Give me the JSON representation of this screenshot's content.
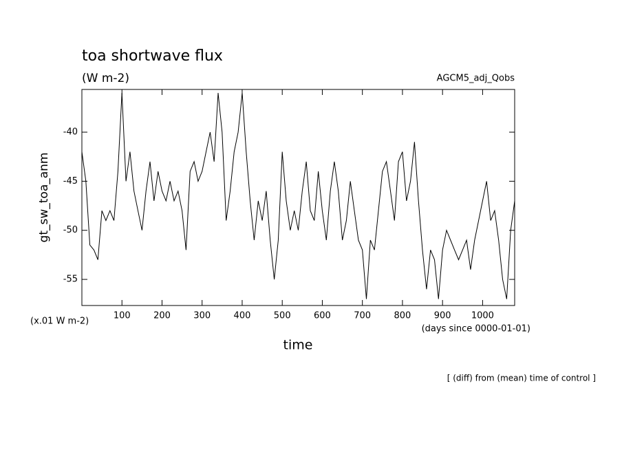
{
  "chart_data": {
    "type": "line",
    "title": "toa shortwave flux",
    "subtitle": "(W m-2)",
    "annotation": "AGCM5_adj_Qobs",
    "y_label": "gt_sw_toa_anm",
    "x_label": "time",
    "y_unit_note": "(x.01 W m-2)",
    "x_unit_note": "(days since 0000-01-01)",
    "footnote": "[ (diff) from (mean) time of control ]",
    "x": [
      0,
      10,
      20,
      30,
      40,
      50,
      60,
      70,
      80,
      90,
      100,
      110,
      120,
      130,
      140,
      150,
      160,
      170,
      180,
      190,
      200,
      210,
      220,
      230,
      240,
      250,
      260,
      270,
      280,
      290,
      300,
      310,
      320,
      330,
      340,
      350,
      360,
      370,
      380,
      390,
      400,
      410,
      420,
      430,
      440,
      450,
      460,
      470,
      480,
      490,
      500,
      510,
      520,
      530,
      540,
      550,
      560,
      570,
      580,
      590,
      600,
      610,
      620,
      630,
      640,
      650,
      660,
      670,
      680,
      690,
      700,
      710,
      720,
      730,
      740,
      750,
      760,
      770,
      780,
      790,
      800,
      810,
      820,
      830,
      840,
      850,
      860,
      870,
      880,
      890,
      900,
      910,
      920,
      930,
      940,
      950,
      960,
      970,
      980,
      990,
      1000,
      1010,
      1020,
      1030,
      1040,
      1050,
      1060,
      1070,
      1080
    ],
    "series": [
      {
        "color": "#000000",
        "values": [
          -42,
          -45,
          -51.5,
          -52,
          -53,
          -48,
          -49,
          -48,
          -49,
          -44,
          -36,
          -45,
          -42,
          -46,
          -48,
          -50,
          -46,
          -43,
          -47,
          -44,
          -46,
          -47,
          -45,
          -47,
          -46,
          -48,
          -52,
          -44,
          -43,
          -45,
          -44,
          -42,
          -40,
          -43,
          -36,
          -40,
          -49,
          -46,
          -42,
          -40,
          -36,
          -42,
          -47,
          -51,
          -47,
          -49,
          -46,
          -51,
          -55,
          -51,
          -42,
          -47,
          -50,
          -48,
          -50,
          -46,
          -43,
          -48,
          -49,
          -44,
          -48,
          -51,
          -46,
          -43,
          -46,
          -51,
          -49,
          -45,
          -48,
          -51,
          -52,
          -57,
          -51,
          -52,
          -48,
          -44,
          -43,
          -46,
          -49,
          -43,
          -42,
          -47,
          -45,
          -41,
          -47,
          -52,
          -56,
          -52,
          -53,
          -57,
          -52,
          -50,
          -51,
          -52,
          -53,
          -52,
          -51,
          -54,
          -51,
          -49,
          -47,
          -45,
          -49,
          -48,
          -51,
          -55,
          -57,
          -50,
          -47
        ]
      }
    ],
    "xlim": [
      0,
      1080
    ],
    "ylim": [
      -57.66,
      -35.65
    ],
    "xticks": [
      100,
      200,
      300,
      400,
      500,
      600,
      700,
      800,
      900,
      1000
    ],
    "yticks": [
      -55,
      -50,
      -45,
      -40
    ]
  }
}
